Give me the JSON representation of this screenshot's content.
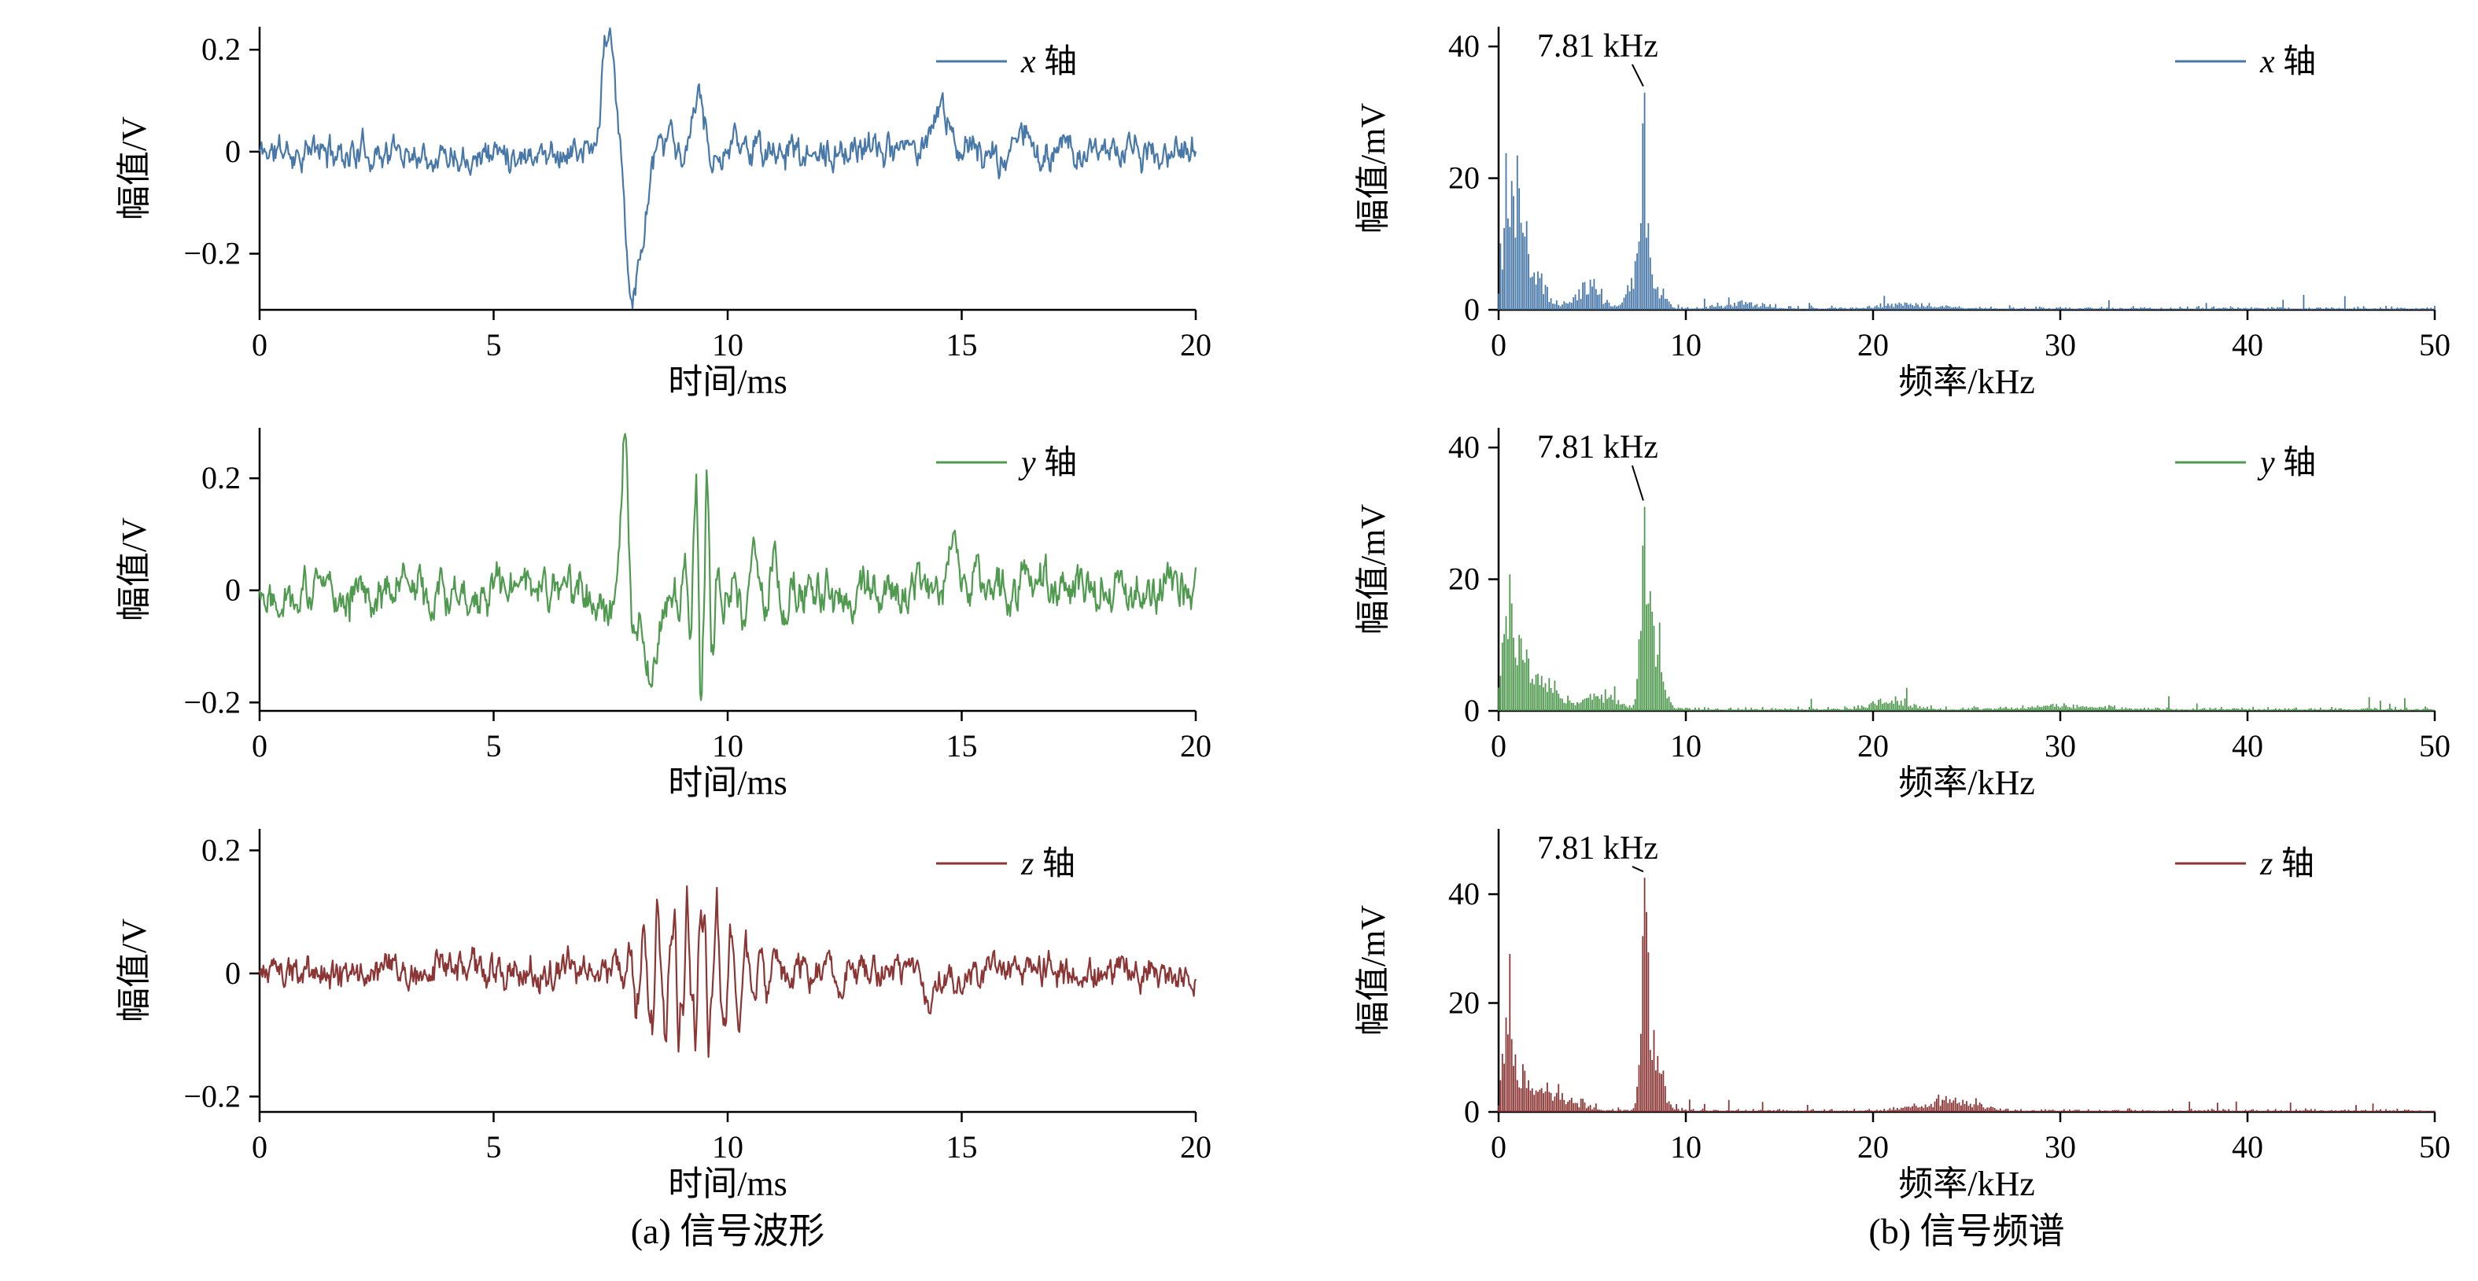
{
  "captions": {
    "a": "(a) 信号波形",
    "b": "(b) 信号频谱"
  },
  "colors": {
    "x_axis": "#4878a8",
    "y_axis": "#4f9a4f",
    "z_axis": "#8b3535",
    "axes": "#000000"
  },
  "chart_data": [
    {
      "kind": "waveform",
      "type": "line",
      "xlabel": "时间/ms",
      "ylabel": "幅值/V",
      "xlim": [
        0,
        20
      ],
      "ylim": [
        -0.31,
        0.245
      ],
      "xticks": [
        [
          0,
          "0"
        ],
        [
          5,
          "5"
        ],
        [
          10,
          "10"
        ],
        [
          15,
          "15"
        ],
        [
          20,
          "20"
        ]
      ],
      "yticks": [
        [
          -0.2,
          "−0.2"
        ],
        [
          0,
          "0"
        ],
        [
          0.2,
          "0.2"
        ]
      ],
      "legend": {
        "letter": "x",
        "suffix": " 轴"
      },
      "color": "#4878a8",
      "summary": {
        "baseline_noise_v": 0.03,
        "burst_peak_v": 0.2,
        "burst_min_v": -0.25,
        "burst_time_ms": [
          7.3,
          10.5
        ],
        "secondary_bump_ms": 14.6
      },
      "signal": {
        "seed": 11,
        "noise": 0.04,
        "n": 1000,
        "components": [
          {
            "type": "gauss",
            "t": 7.35,
            "w": 0.1,
            "a": 0.14
          },
          {
            "type": "gauss",
            "t": 7.5,
            "w": 0.13,
            "a": 0.2
          },
          {
            "type": "gauss",
            "t": 7.9,
            "w": 0.12,
            "a": -0.18
          },
          {
            "type": "gauss",
            "t": 8.1,
            "w": 0.2,
            "a": -0.22
          },
          {
            "type": "osc",
            "t0": 8.5,
            "t1": 10.6,
            "f": 1.3,
            "a": 0.07
          },
          {
            "type": "gauss",
            "t": 9.3,
            "w": 0.3,
            "a": 0.05
          },
          {
            "type": "gauss",
            "t": 14.55,
            "w": 0.22,
            "a": 0.1
          },
          {
            "type": "osc",
            "t0": 15.5,
            "t1": 17.5,
            "f": 1.0,
            "a": 0.045
          }
        ]
      }
    },
    {
      "kind": "waveform",
      "type": "line",
      "xlabel": "时间/ms",
      "ylabel": "幅值/V",
      "xlim": [
        0,
        20
      ],
      "ylim": [
        -0.215,
        0.29
      ],
      "xticks": [
        [
          0,
          "0"
        ],
        [
          5,
          "5"
        ],
        [
          10,
          "10"
        ],
        [
          15,
          "15"
        ],
        [
          20,
          "20"
        ]
      ],
      "yticks": [
        [
          -0.2,
          "−0.2"
        ],
        [
          0,
          "0"
        ],
        [
          0.2,
          "0.2"
        ]
      ],
      "legend": {
        "letter": "y",
        "suffix": " 轴"
      },
      "color": "#4f9a4f",
      "summary": {
        "baseline_noise_v": 0.04,
        "burst_peak_v": 0.25,
        "burst_min_v": -0.17,
        "burst_time_ms": [
          7.4,
          11.3
        ]
      },
      "signal": {
        "seed": 22,
        "noise": 0.05,
        "n": 1000,
        "components": [
          {
            "type": "gauss",
            "t": 7.5,
            "w": 0.12,
            "a": -0.06
          },
          {
            "type": "gauss",
            "t": 7.8,
            "w": 0.1,
            "a": 0.26
          },
          {
            "type": "gauss",
            "t": 8.0,
            "w": 0.09,
            "a": -0.1
          },
          {
            "type": "gauss",
            "t": 8.35,
            "w": 0.22,
            "a": -0.17
          },
          {
            "type": "osc",
            "t0": 9.0,
            "t1": 9.9,
            "f": 4.0,
            "a": 0.23
          },
          {
            "type": "osc",
            "t0": 10.0,
            "t1": 11.4,
            "f": 2.2,
            "a": 0.09
          },
          {
            "type": "gauss",
            "t": 14.85,
            "w": 0.15,
            "a": 0.07
          }
        ]
      }
    },
    {
      "kind": "waveform",
      "type": "line",
      "xlabel": "时间/ms",
      "ylabel": "幅值/V",
      "xlim": [
        0,
        20
      ],
      "ylim": [
        -0.225,
        0.235
      ],
      "xticks": [
        [
          0,
          "0"
        ],
        [
          5,
          "5"
        ],
        [
          10,
          "10"
        ],
        [
          15,
          "15"
        ],
        [
          20,
          "20"
        ]
      ],
      "yticks": [
        [
          -0.2,
          "−0.2"
        ],
        [
          0,
          "0"
        ],
        [
          0.2,
          "0.2"
        ]
      ],
      "legend": {
        "letter": "z",
        "suffix": " 轴"
      },
      "color": "#8b3535",
      "summary": {
        "baseline_noise_v": 0.03,
        "burst_peak_v": 0.13,
        "burst_min_v": -0.13,
        "burst_time_ms": [
          7.3,
          11.3
        ]
      },
      "signal": {
        "seed": 33,
        "noise": 0.035,
        "n": 1000,
        "components": [
          {
            "type": "osc",
            "t0": 7.3,
            "t1": 11.3,
            "f": 3.2,
            "a": 0.125
          },
          {
            "type": "osc",
            "t0": 8.2,
            "t1": 10.2,
            "f": 7.8,
            "a": 0.05
          },
          {
            "type": "gauss",
            "t": 14.3,
            "w": 0.12,
            "a": -0.055
          }
        ]
      }
    },
    {
      "kind": "spectrum",
      "type": "bar",
      "xlabel": "频率/kHz",
      "ylabel": "幅值/mV",
      "xlim": [
        0,
        50
      ],
      "ylim": [
        0,
        43
      ],
      "xticks": [
        [
          0,
          "0"
        ],
        [
          10,
          "10"
        ],
        [
          20,
          "20"
        ],
        [
          30,
          "30"
        ],
        [
          40,
          "40"
        ],
        [
          50,
          "50"
        ]
      ],
      "yticks": [
        [
          0,
          "0"
        ],
        [
          20,
          "20"
        ],
        [
          40,
          "40"
        ]
      ],
      "legend": {
        "letter": "x",
        "suffix": " 轴"
      },
      "color": "#4878a8",
      "annotation": {
        "text": "7.81 kHz",
        "f": 7.81,
        "amp": 33
      },
      "summary": {
        "peak_frequency_khz": 7.81,
        "peak_amplitude_mv": 33,
        "low_freq_cluster_mv": 21
      },
      "spectrum": {
        "seed": 44,
        "floor": 1.2,
        "step": 0.1,
        "clusters": [
          {
            "f": 0.4,
            "w": 0.35,
            "a": 21
          },
          {
            "f": 1.0,
            "w": 0.45,
            "a": 20
          },
          {
            "f": 1.8,
            "w": 0.8,
            "a": 9
          },
          {
            "f": 4.8,
            "w": 0.9,
            "a": 4.5
          },
          {
            "f": 7.3,
            "w": 0.45,
            "a": 8
          },
          {
            "f": 7.81,
            "w": 0.28,
            "a": 33,
            "main": true
          },
          {
            "f": 8.6,
            "w": 0.4,
            "a": 5
          },
          {
            "f": 13,
            "w": 1.5,
            "a": 1.2
          },
          {
            "f": 22,
            "w": 2,
            "a": 1.0
          }
        ]
      }
    },
    {
      "kind": "spectrum",
      "type": "bar",
      "xlabel": "频率/kHz",
      "ylabel": "幅值/mV",
      "xlim": [
        0,
        50
      ],
      "ylim": [
        0,
        43
      ],
      "xticks": [
        [
          0,
          "0"
        ],
        [
          10,
          "10"
        ],
        [
          20,
          "20"
        ],
        [
          30,
          "30"
        ],
        [
          40,
          "40"
        ],
        [
          50,
          "50"
        ]
      ],
      "yticks": [
        [
          0,
          "0"
        ],
        [
          20,
          "20"
        ],
        [
          40,
          "40"
        ]
      ],
      "legend": {
        "letter": "y",
        "suffix": " 轴"
      },
      "color": "#4f9a4f",
      "annotation": {
        "text": "7.81 kHz",
        "f": 7.81,
        "amp": 31
      },
      "summary": {
        "peak_frequency_khz": 7.81,
        "peak_amplitude_mv": 31,
        "low_freq_cluster_mv": 27
      },
      "spectrum": {
        "seed": 55,
        "floor": 1.2,
        "step": 0.1,
        "clusters": [
          {
            "f": 0.5,
            "w": 0.35,
            "a": 27
          },
          {
            "f": 1.2,
            "w": 0.6,
            "a": 11
          },
          {
            "f": 2.5,
            "w": 1.2,
            "a": 5
          },
          {
            "f": 5.5,
            "w": 1.0,
            "a": 3.5
          },
          {
            "f": 7.81,
            "w": 0.3,
            "a": 31,
            "main": true
          },
          {
            "f": 8.4,
            "w": 0.5,
            "a": 16
          },
          {
            "f": 21,
            "w": 1.5,
            "a": 1.8
          },
          {
            "f": 30,
            "w": 3,
            "a": 0.8
          }
        ]
      }
    },
    {
      "kind": "spectrum",
      "type": "bar",
      "xlabel": "频率/kHz",
      "ylabel": "幅值/mV",
      "xlim": [
        0,
        50
      ],
      "ylim": [
        0,
        52
      ],
      "xticks": [
        [
          0,
          "0"
        ],
        [
          10,
          "10"
        ],
        [
          20,
          "20"
        ],
        [
          30,
          "30"
        ],
        [
          40,
          "40"
        ],
        [
          50,
          "50"
        ]
      ],
      "yticks": [
        [
          0,
          "0"
        ],
        [
          20,
          "20"
        ],
        [
          40,
          "40"
        ]
      ],
      "legend": {
        "letter": "z",
        "suffix": " 轴"
      },
      "color": "#8b3535",
      "annotation": {
        "text": "7.81 kHz",
        "f": 7.81,
        "amp": 43
      },
      "summary": {
        "peak_frequency_khz": 7.81,
        "peak_amplitude_mv": 43,
        "low_freq_cluster_mv": 29
      },
      "spectrum": {
        "seed": 66,
        "floor": 1.2,
        "step": 0.1,
        "clusters": [
          {
            "f": 0.5,
            "w": 0.3,
            "a": 29
          },
          {
            "f": 1.3,
            "w": 0.7,
            "a": 8
          },
          {
            "f": 3,
            "w": 1.5,
            "a": 4
          },
          {
            "f": 7.81,
            "w": 0.3,
            "a": 43,
            "main": true
          },
          {
            "f": 8.4,
            "w": 0.5,
            "a": 13
          },
          {
            "f": 24,
            "w": 2,
            "a": 2.5
          }
        ]
      }
    }
  ]
}
